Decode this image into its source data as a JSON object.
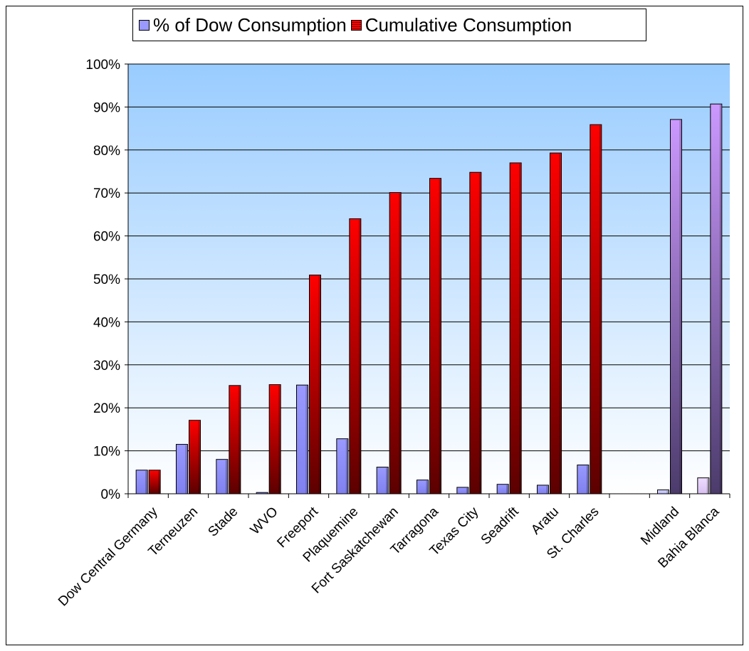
{
  "chart_data": {
    "type": "bar",
    "categories": [
      "Dow Central Germany",
      "Terneuzen",
      "Stade",
      "WVO",
      "Freeport",
      "Plaquemine",
      "Fort Saskatchewan",
      "Tarragona",
      "Texas City",
      "Seadrift",
      "Aratu",
      "St. Charles",
      "",
      "Midland",
      "Bahia Blanca"
    ],
    "series": [
      {
        "name": "% of Dow Consumption",
        "values": [
          5.5,
          11.5,
          8.0,
          0.3,
          25.3,
          12.8,
          6.2,
          3.2,
          1.5,
          2.2,
          2.0,
          6.7,
          null,
          0.9,
          3.7
        ],
        "color": "#9999ff"
      },
      {
        "name": "Cumulative Consumption",
        "values": [
          5.5,
          17.1,
          25.2,
          25.4,
          50.9,
          64.0,
          70.1,
          73.4,
          74.8,
          77.0,
          79.3,
          85.9,
          null,
          87.1,
          90.7
        ],
        "color": "#ff0000"
      }
    ],
    "ylim": [
      0,
      100
    ],
    "yticks": [
      "0%",
      "10%",
      "20%",
      "30%",
      "40%",
      "50%",
      "60%",
      "70%",
      "80%",
      "90%",
      "100%"
    ],
    "grid": true,
    "legend_position": "top",
    "background_gradient": [
      "#99ccff",
      "#ffffff"
    ],
    "title": "",
    "xlabel": "",
    "ylabel": ""
  }
}
